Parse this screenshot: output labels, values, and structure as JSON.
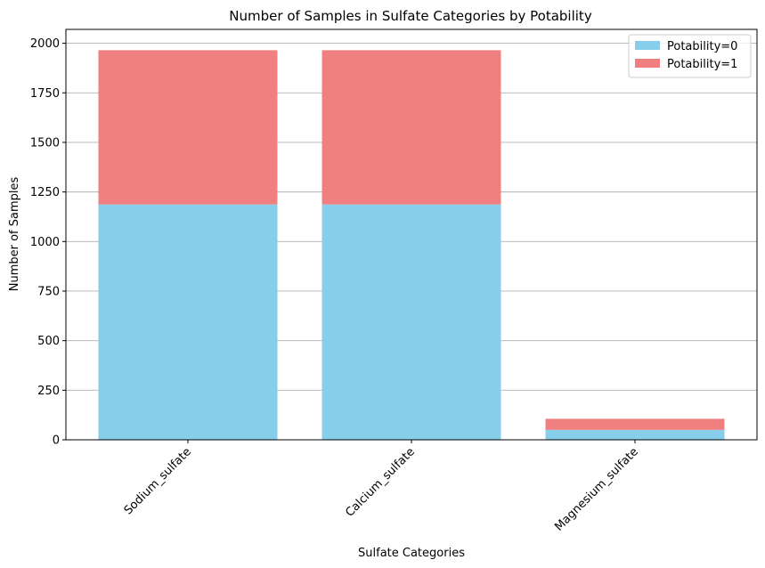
{
  "chart_data": {
    "type": "bar",
    "stacked": true,
    "title": "Number of Samples in Sulfate Categories by Potability",
    "xlabel": "Sulfate Categories",
    "ylabel": "Number of Samples",
    "categories": [
      "Sodium_sulfate",
      "Calcium_sulfate",
      "Magnesium_sulfate"
    ],
    "series": [
      {
        "name": "Potability=0",
        "color": "#87CEEB",
        "values": [
          1187,
          1187,
          50
        ]
      },
      {
        "name": "Potability=1",
        "color": "#F08080",
        "values": [
          778,
          778,
          56
        ]
      }
    ],
    "ylim": [
      0,
      2070
    ],
    "yticks": [
      0,
      250,
      500,
      750,
      1000,
      1250,
      1500,
      1750,
      2000
    ],
    "grid": {
      "y": true,
      "x": false
    },
    "legend": {
      "position": "top-right"
    },
    "xtick_rotation": 45
  }
}
